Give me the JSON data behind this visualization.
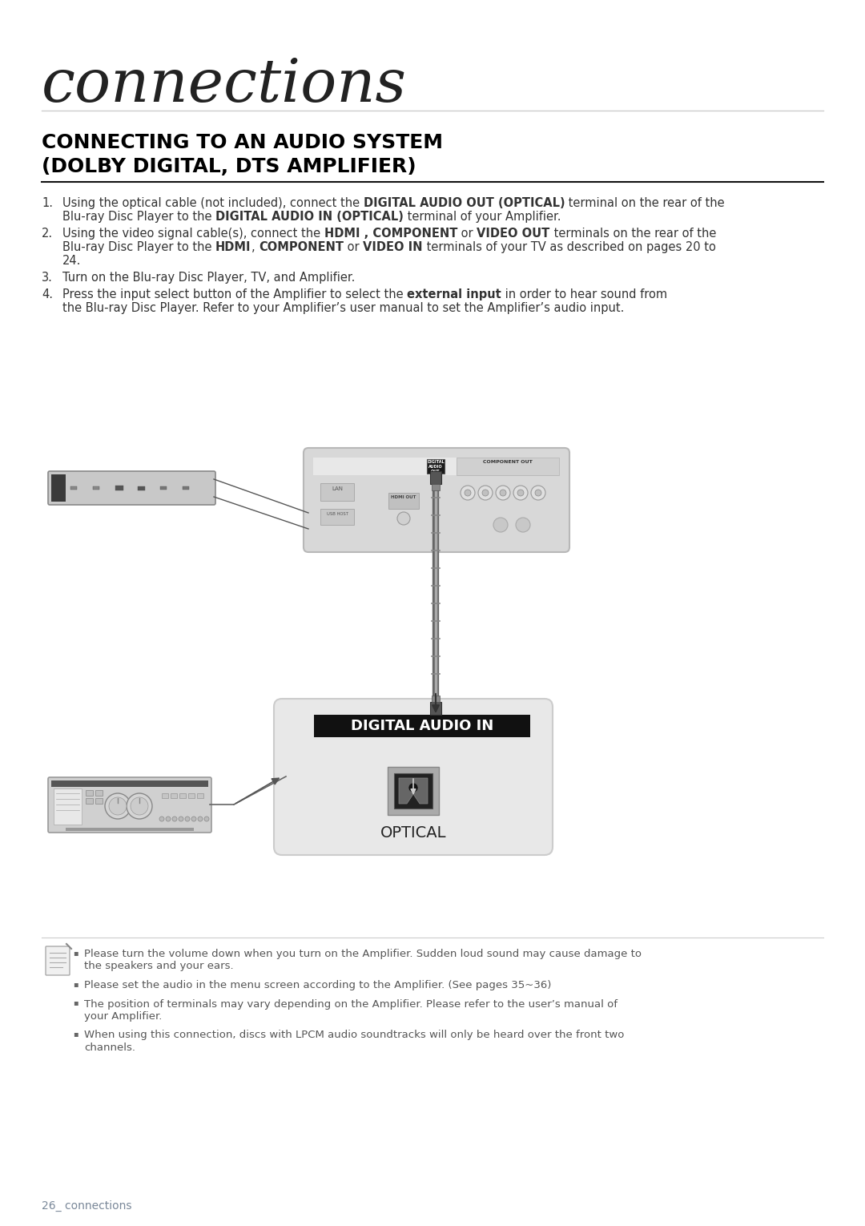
{
  "page_title": "connections",
  "section_title_line1": "CONNECTING TO AN AUDIO SYSTEM",
  "section_title_line2": "(DOLBY DIGITAL, DTS AMPLIFIER)",
  "item1_line1_normal1": "Using the optical cable (not included), connect the ",
  "item1_line1_bold1": "DIGITAL AUDIO OUT (OPTICAL)",
  "item1_line1_normal2": " terminal on the rear of the",
  "item1_line2_normal1": "Blu-ray Disc Player to the ",
  "item1_line2_bold1": "DIGITAL AUDIO IN (OPTICAL)",
  "item1_line2_normal2": " terminal of your Amplifier.",
  "item2_line1_normal1": "Using the video signal cable(s), connect the ",
  "item2_line1_bold1": "HDMI , COMPONENT",
  "item2_line1_normal2": " or ",
  "item2_line1_bold2": "VIDEO OUT",
  "item2_line1_normal3": " terminals on the rear of the",
  "item2_line2_normal1": "Blu-ray Disc Player to the ",
  "item2_line2_bold1": "HDMI",
  "item2_line2_normal2": ", ",
  "item2_line2_bold2": "COMPONENT",
  "item2_line2_normal3": " or ",
  "item2_line2_bold3": "VIDEO IN",
  "item2_line2_normal4": " terminals of your TV as described on pages 20 to",
  "item2_line3": "24.",
  "item3": "Turn on the Blu-ray Disc Player, TV, and Amplifier.",
  "item4_line1_normal1": "Press the input select button of the Amplifier to select the ",
  "item4_line1_bold1": "external input",
  "item4_line1_normal2": " in order to hear sound from",
  "item4_line2": "the Blu-ray Disc Player. Refer to your Amplifier’s user manual to set the Amplifier’s audio input.",
  "notes": [
    "Please turn the volume down when you turn on the Amplifier. Sudden loud sound may cause damage to the speakers and your ears.",
    "Please set the audio in the menu screen according to the Amplifier. (See pages 35~36)",
    "The position of terminals may vary depending on the Amplifier. Please refer to the user’s manual of your Amplifier.",
    "When using this connection, discs with LPCM audio soundtracks will only be heard over the front two channels."
  ],
  "footer": "26_ connections",
  "colors": {
    "bg": "#ffffff",
    "page_title": "#222222",
    "heading": "#000000",
    "body": "#333333",
    "hr_light": "#cccccc",
    "hr_dark": "#111111",
    "footer": "#7a8899",
    "note_text": "#555555",
    "bullet": "#666666",
    "dev_dark": "#2a2a2a",
    "dev_mid": "#555555",
    "dev_light": "#aaaaaa",
    "panel_bg": "#d4d4d4",
    "panel_border": "#b0b0b0",
    "cable_dark": "#555555",
    "cable_light": "#aaaaaa",
    "dai_bg": "#e0e0e0",
    "dai_border": "#bbbbbb",
    "dai_label_bg": "#111111",
    "dai_label_text": "#ffffff",
    "optical_black": "#1a1a1a",
    "optical_gray": "#888888",
    "optical_white": "#cccccc"
  }
}
